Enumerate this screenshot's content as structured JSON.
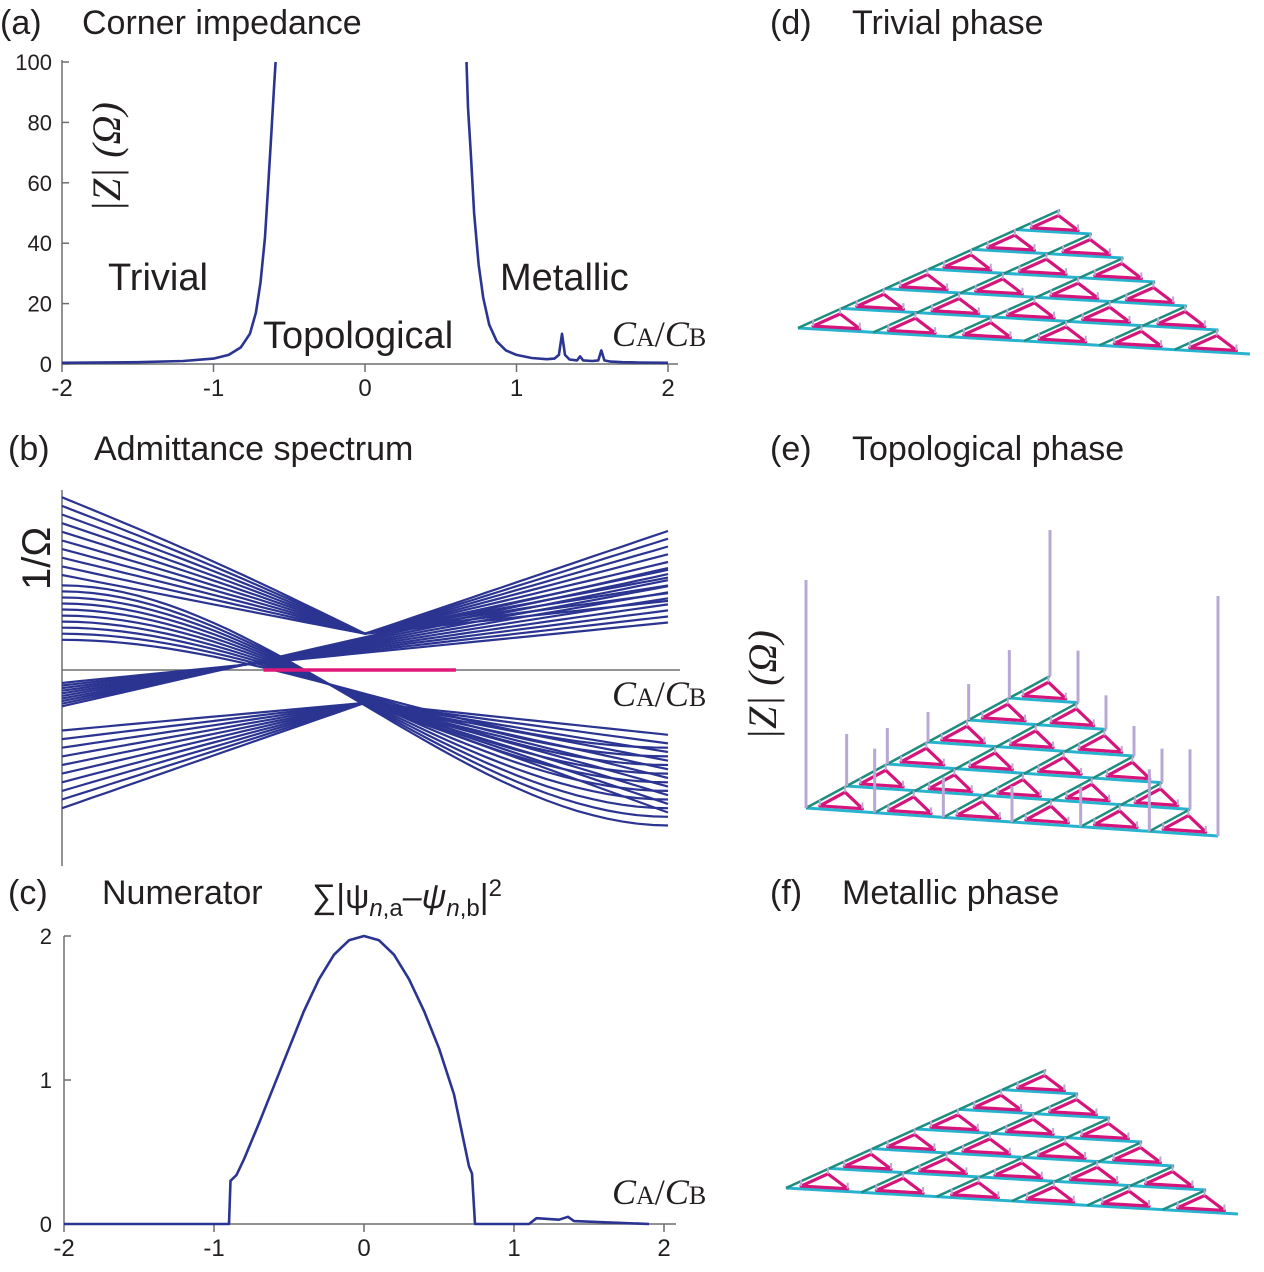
{
  "panels": {
    "a": {
      "tag": "(a)",
      "title": "Corner impedance"
    },
    "b": {
      "tag": "(b)",
      "title": "Admittance spectrum"
    },
    "c": {
      "tag": "(c)",
      "title": "Numerator"
    },
    "d": {
      "tag": "(d)",
      "title": "Trivial phase"
    },
    "e": {
      "tag": "(e)",
      "title": "Topological phase"
    },
    "f": {
      "tag": "(f)",
      "title": "Metallic phase"
    }
  },
  "labels": {
    "trivial": "Trivial",
    "topological": "Topological",
    "metallic": "Metallic",
    "z_ylabel": "|Z| (Ω)",
    "inv_ohm": "1/Ω",
    "xlabel_CA": "C",
    "xlabel_sub_A": "A",
    "xlabel_slash": "/",
    "xlabel_sub_B": "B",
    "numerator_sum": "∑|ψ",
    "numerator_sub1": "n",
    "numerator_sub1b": ",a",
    "numerator_minus": "–ψ",
    "numerator_sub2": "n",
    "numerator_sub2b": ",b",
    "numerator_close": "|",
    "numerator_sup": "2"
  },
  "colors": {
    "curve": "#2b3491",
    "highlight": "#e0187a",
    "axis": "#6d6e71",
    "lattice_magenta": "#d6157c",
    "lattice_cyan": "#27b3cf",
    "lattice_teal": "#1e8c7e",
    "pillar": "#b7a8d6"
  },
  "chart_data": [
    {
      "panel": "a",
      "type": "line",
      "title": "Corner impedance",
      "xlabel": "C_A/C_B",
      "ylabel": "|Z| (Ω)",
      "xlim": [
        -2,
        2
      ],
      "ylim": [
        0,
        100
      ],
      "xticks": [
        "-2",
        "-1",
        "0",
        "1",
        "2"
      ],
      "yticks": [
        "0",
        "20",
        "40",
        "60",
        "80",
        "100"
      ],
      "annotations": [
        "Trivial",
        "Topological",
        "Metallic"
      ],
      "series": [
        {
          "x": [
            -2.0,
            -1.5,
            -1.2,
            -1.0,
            -0.9,
            -0.82,
            -0.76,
            -0.72,
            -0.69,
            -0.66,
            -0.64,
            -0.62,
            -0.6,
            -0.59
          ],
          "y": [
            0.4,
            0.6,
            1.0,
            1.8,
            3.0,
            5.5,
            10.0,
            17.0,
            27.0,
            42.0,
            58.0,
            75.0,
            92.0,
            100.0
          ]
        },
        {
          "x": [
            0.67,
            0.68,
            0.7,
            0.72,
            0.75,
            0.78,
            0.82,
            0.87,
            0.93,
            1.0,
            1.1,
            1.2,
            1.25,
            1.28,
            1.3,
            1.32,
            1.35,
            1.4,
            1.42,
            1.44,
            1.5,
            1.54,
            1.56,
            1.58,
            1.62,
            1.7,
            1.8,
            2.0
          ],
          "y": [
            100.0,
            85.0,
            68.0,
            50.0,
            33.0,
            22.0,
            13.0,
            7.5,
            4.5,
            3.0,
            2.0,
            1.6,
            1.8,
            3.0,
            10.0,
            3.0,
            1.5,
            1.2,
            2.5,
            1.2,
            1.0,
            1.2,
            4.5,
            1.2,
            0.8,
            0.6,
            0.5,
            0.4
          ]
        }
      ]
    },
    {
      "panel": "b",
      "type": "line",
      "title": "Admittance spectrum",
      "xlabel": "C_A/C_B",
      "ylabel": "1/Ω",
      "xlim": [
        -2,
        2
      ],
      "ylim": [
        -2.2,
        2.2
      ],
      "bands": {
        "upper_left": [
          1.1,
          1.2,
          1.3,
          1.4,
          1.5,
          1.6,
          1.7,
          1.8,
          1.9,
          2.0
        ],
        "lower_left": [
          -0.7,
          -0.8,
          -0.9,
          -1.0,
          -1.1,
          -1.2,
          -1.3,
          -1.4,
          -1.5,
          -1.6
        ]
      },
      "highlight_segment": {
        "x": [
          -0.67,
          0.6
        ],
        "y": 0
      }
    },
    {
      "panel": "c",
      "type": "line",
      "title": "Numerator",
      "xlabel": "C_A/C_B",
      "xlim": [
        -2,
        2
      ],
      "ylim": [
        0,
        2
      ],
      "xticks": [
        "-2",
        "-1",
        "0",
        "1",
        "2"
      ],
      "yticks": [
        "0",
        "1",
        "2"
      ],
      "series": [
        {
          "x": [
            -2.0,
            -0.9,
            -0.89,
            -0.85,
            -0.8,
            -0.7,
            -0.6,
            -0.5,
            -0.4,
            -0.3,
            -0.2,
            -0.1,
            0.0,
            0.1,
            0.2,
            0.3,
            0.4,
            0.5,
            0.6,
            0.7,
            0.72,
            0.74,
            1.1,
            1.15,
            1.3,
            1.36,
            1.4,
            1.9
          ],
          "y": [
            0.0,
            0.0,
            0.3,
            0.34,
            0.45,
            0.7,
            0.96,
            1.22,
            1.48,
            1.7,
            1.87,
            1.97,
            2.0,
            1.97,
            1.87,
            1.7,
            1.48,
            1.22,
            0.9,
            0.4,
            0.35,
            0.0,
            0.0,
            0.04,
            0.03,
            0.05,
            0.02,
            0.0
          ]
        }
      ]
    }
  ]
}
